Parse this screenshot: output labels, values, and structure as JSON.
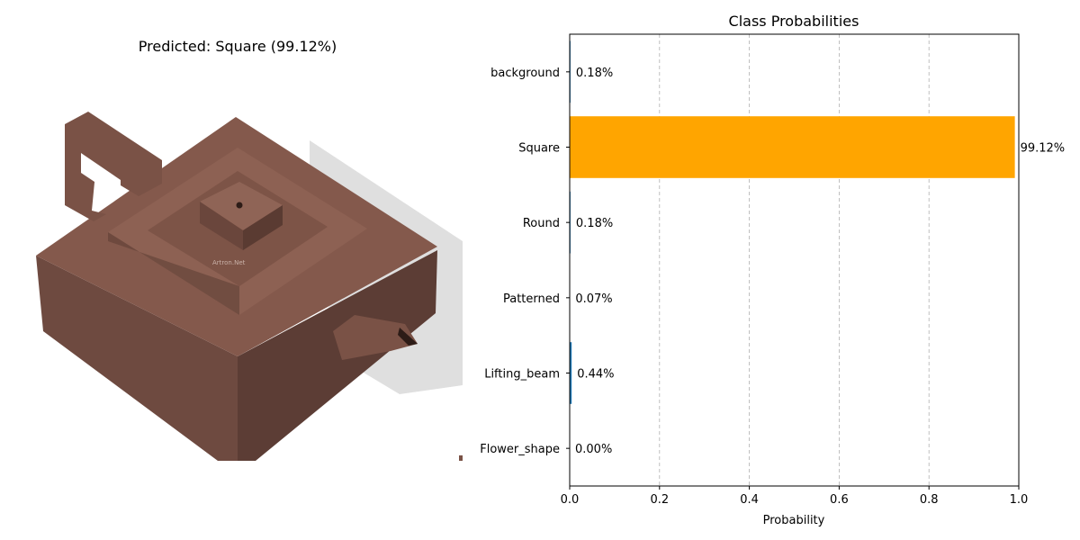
{
  "prediction": {
    "title": "Predicted: Square (99.12%)",
    "image_subject": "square zisha teapot with lifting handle",
    "watermark": "Artron.Net"
  },
  "colors": {
    "highlight_bar": "#ffa500",
    "default_bar": "#1f77b4",
    "teapot": "#7a5246"
  },
  "chart_data": {
    "type": "bar",
    "orientation": "horizontal",
    "title": "Class Probabilities",
    "xlabel": "Probability",
    "ylabel": "",
    "xlim": [
      0,
      1
    ],
    "xticks": [
      "0.0",
      "0.2",
      "0.4",
      "0.6",
      "0.8",
      "1.0"
    ],
    "grid": "x-dashed",
    "categories": [
      "Flower_shape",
      "Lifting_beam",
      "Patterned",
      "Round",
      "Square",
      "background"
    ],
    "values": [
      0.0,
      0.0044,
      0.0007,
      0.0018,
      0.9912,
      0.0018
    ],
    "labels": [
      "0.00%",
      "0.44%",
      "0.07%",
      "0.18%",
      "99.12%",
      "0.18%"
    ],
    "highlight": "Square"
  }
}
